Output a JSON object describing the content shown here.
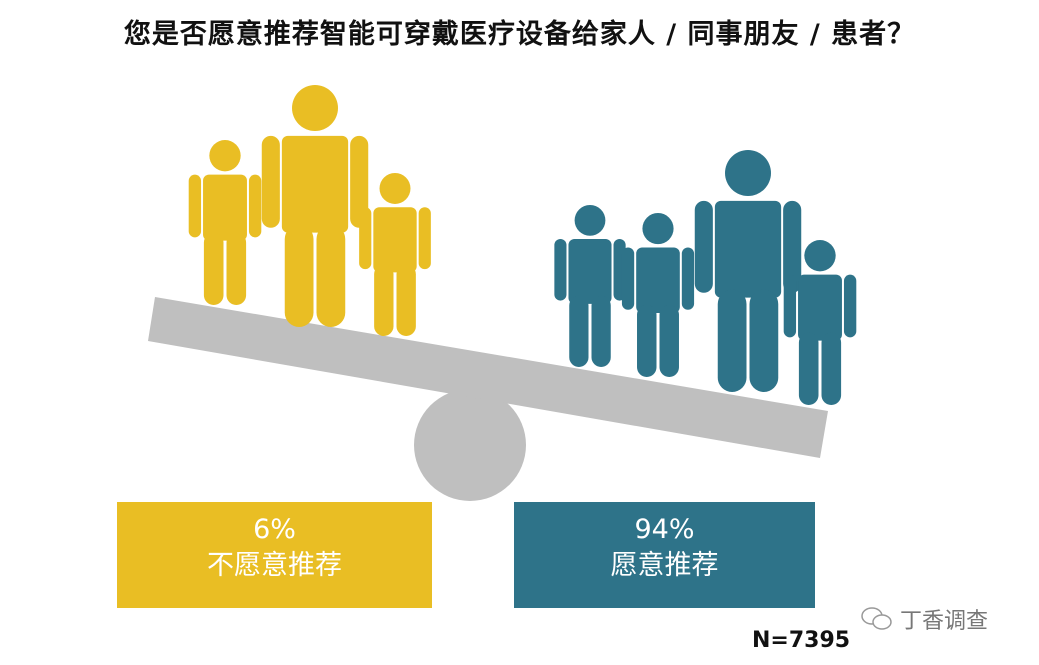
{
  "title": "您是否愿意推荐智能可穿戴医疗设备给家人 / 同事朋友 / 患者？",
  "colors": {
    "no": "#E9BE24",
    "yes": "#2E7389",
    "seesaw": "#BFBFBF"
  },
  "chart_data": {
    "type": "pie",
    "title": "您是否愿意推荐智能可穿戴医疗设备给家人 / 同事朋友 / 患者？",
    "categories": [
      "不愿意推荐",
      "愿意推荐"
    ],
    "values": [
      6,
      94
    ],
    "value_labels": [
      "6%",
      "94%"
    ],
    "sample_size": "N=7395"
  },
  "watermark": {
    "icon": "wechat-icon",
    "text": "丁香调查"
  }
}
